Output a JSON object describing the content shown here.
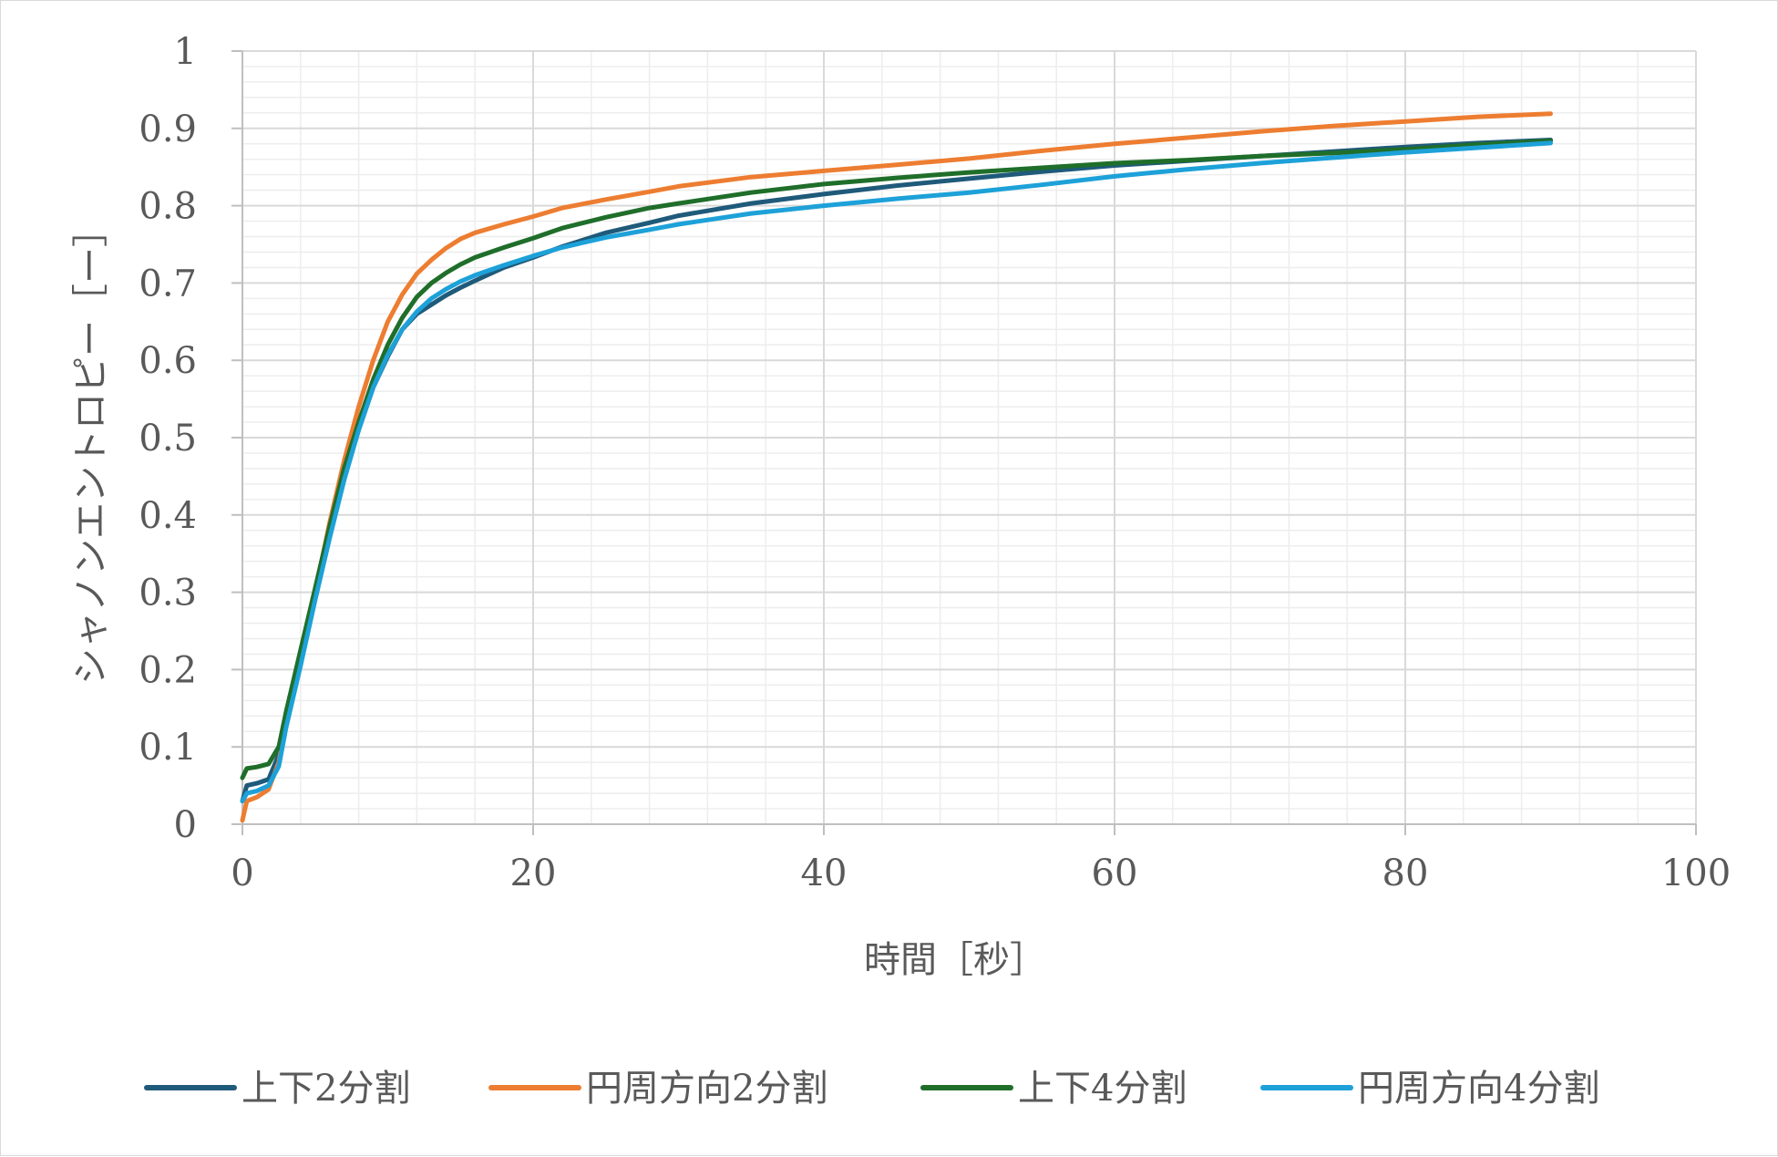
{
  "chart_data": {
    "type": "line",
    "title": "",
    "xlabel": "時間［秒］",
    "ylabel": "シャノンエントロピー［ー］",
    "xlim": [
      0,
      100
    ],
    "ylim": [
      0,
      1
    ],
    "x_ticks": [
      0,
      20,
      40,
      60,
      80,
      100
    ],
    "y_ticks": [
      0,
      0.1,
      0.2,
      0.3,
      0.4,
      0.5,
      0.6,
      0.7,
      0.8,
      0.9,
      1
    ],
    "grid": {
      "major": true,
      "minor": true,
      "x_minor_step": 4,
      "y_minor_step": 0.02
    },
    "legend_position": "bottom",
    "series": [
      {
        "name": "上下2分割",
        "color": "#1f5a7a",
        "points": [
          [
            0,
            0.03
          ],
          [
            0.3,
            0.05
          ],
          [
            1,
            0.053
          ],
          [
            1.8,
            0.058
          ],
          [
            2.5,
            0.09
          ],
          [
            3,
            0.14
          ],
          [
            4,
            0.22
          ],
          [
            5,
            0.3
          ],
          [
            6,
            0.38
          ],
          [
            7,
            0.45
          ],
          [
            8,
            0.51
          ],
          [
            9,
            0.565
          ],
          [
            10,
            0.605
          ],
          [
            11,
            0.64
          ],
          [
            12,
            0.66
          ],
          [
            13,
            0.672
          ],
          [
            14,
            0.684
          ],
          [
            15,
            0.694
          ],
          [
            16,
            0.703
          ],
          [
            18,
            0.72
          ],
          [
            20,
            0.733
          ],
          [
            22,
            0.747
          ],
          [
            25,
            0.765
          ],
          [
            28,
            0.778
          ],
          [
            30,
            0.787
          ],
          [
            35,
            0.803
          ],
          [
            40,
            0.815
          ],
          [
            45,
            0.826
          ],
          [
            50,
            0.835
          ],
          [
            55,
            0.844
          ],
          [
            60,
            0.852
          ],
          [
            65,
            0.858
          ],
          [
            70,
            0.864
          ],
          [
            75,
            0.87
          ],
          [
            80,
            0.876
          ],
          [
            85,
            0.881
          ],
          [
            90,
            0.885
          ]
        ]
      },
      {
        "name": "円周方向2分割",
        "color": "#ed7d31",
        "points": [
          [
            0,
            0.005
          ],
          [
            0.3,
            0.03
          ],
          [
            1,
            0.035
          ],
          [
            1.8,
            0.045
          ],
          [
            2.5,
            0.08
          ],
          [
            3,
            0.13
          ],
          [
            4,
            0.22
          ],
          [
            5,
            0.3
          ],
          [
            6,
            0.39
          ],
          [
            7,
            0.47
          ],
          [
            8,
            0.54
          ],
          [
            9,
            0.6
          ],
          [
            10,
            0.65
          ],
          [
            11,
            0.685
          ],
          [
            12,
            0.712
          ],
          [
            13,
            0.73
          ],
          [
            14,
            0.745
          ],
          [
            15,
            0.757
          ],
          [
            16,
            0.765
          ],
          [
            18,
            0.776
          ],
          [
            20,
            0.786
          ],
          [
            22,
            0.797
          ],
          [
            25,
            0.808
          ],
          [
            28,
            0.818
          ],
          [
            30,
            0.825
          ],
          [
            35,
            0.837
          ],
          [
            40,
            0.845
          ],
          [
            45,
            0.853
          ],
          [
            50,
            0.861
          ],
          [
            55,
            0.871
          ],
          [
            60,
            0.88
          ],
          [
            65,
            0.888
          ],
          [
            70,
            0.896
          ],
          [
            75,
            0.903
          ],
          [
            80,
            0.909
          ],
          [
            85,
            0.915
          ],
          [
            90,
            0.919
          ]
        ]
      },
      {
        "name": "上下4分割",
        "color": "#1f6e2a",
        "points": [
          [
            0,
            0.06
          ],
          [
            0.3,
            0.072
          ],
          [
            1,
            0.074
          ],
          [
            1.8,
            0.078
          ],
          [
            2.5,
            0.1
          ],
          [
            3,
            0.145
          ],
          [
            4,
            0.225
          ],
          [
            5,
            0.305
          ],
          [
            6,
            0.385
          ],
          [
            7,
            0.46
          ],
          [
            8,
            0.52
          ],
          [
            9,
            0.575
          ],
          [
            10,
            0.62
          ],
          [
            11,
            0.655
          ],
          [
            12,
            0.682
          ],
          [
            13,
            0.7
          ],
          [
            14,
            0.713
          ],
          [
            15,
            0.724
          ],
          [
            16,
            0.733
          ],
          [
            18,
            0.746
          ],
          [
            20,
            0.758
          ],
          [
            22,
            0.771
          ],
          [
            25,
            0.785
          ],
          [
            28,
            0.797
          ],
          [
            30,
            0.803
          ],
          [
            35,
            0.817
          ],
          [
            40,
            0.828
          ],
          [
            45,
            0.836
          ],
          [
            50,
            0.843
          ],
          [
            55,
            0.849
          ],
          [
            60,
            0.855
          ],
          [
            65,
            0.859
          ],
          [
            70,
            0.864
          ],
          [
            75,
            0.868
          ],
          [
            80,
            0.873
          ],
          [
            85,
            0.879
          ],
          [
            90,
            0.884
          ]
        ]
      },
      {
        "name": "円周方向4分割",
        "color": "#1da1d8",
        "points": [
          [
            0,
            0.03
          ],
          [
            0.3,
            0.04
          ],
          [
            1,
            0.043
          ],
          [
            1.8,
            0.05
          ],
          [
            2.5,
            0.075
          ],
          [
            3,
            0.125
          ],
          [
            4,
            0.205
          ],
          [
            5,
            0.29
          ],
          [
            6,
            0.37
          ],
          [
            7,
            0.445
          ],
          [
            8,
            0.51
          ],
          [
            9,
            0.565
          ],
          [
            10,
            0.607
          ],
          [
            11,
            0.64
          ],
          [
            12,
            0.663
          ],
          [
            13,
            0.68
          ],
          [
            14,
            0.692
          ],
          [
            15,
            0.702
          ],
          [
            16,
            0.71
          ],
          [
            18,
            0.723
          ],
          [
            20,
            0.735
          ],
          [
            22,
            0.746
          ],
          [
            25,
            0.759
          ],
          [
            28,
            0.769
          ],
          [
            30,
            0.776
          ],
          [
            35,
            0.79
          ],
          [
            40,
            0.8
          ],
          [
            45,
            0.809
          ],
          [
            50,
            0.817
          ],
          [
            55,
            0.827
          ],
          [
            60,
            0.838
          ],
          [
            65,
            0.847
          ],
          [
            70,
            0.855
          ],
          [
            75,
            0.862
          ],
          [
            80,
            0.869
          ],
          [
            85,
            0.875
          ],
          [
            90,
            0.881
          ]
        ]
      }
    ]
  }
}
